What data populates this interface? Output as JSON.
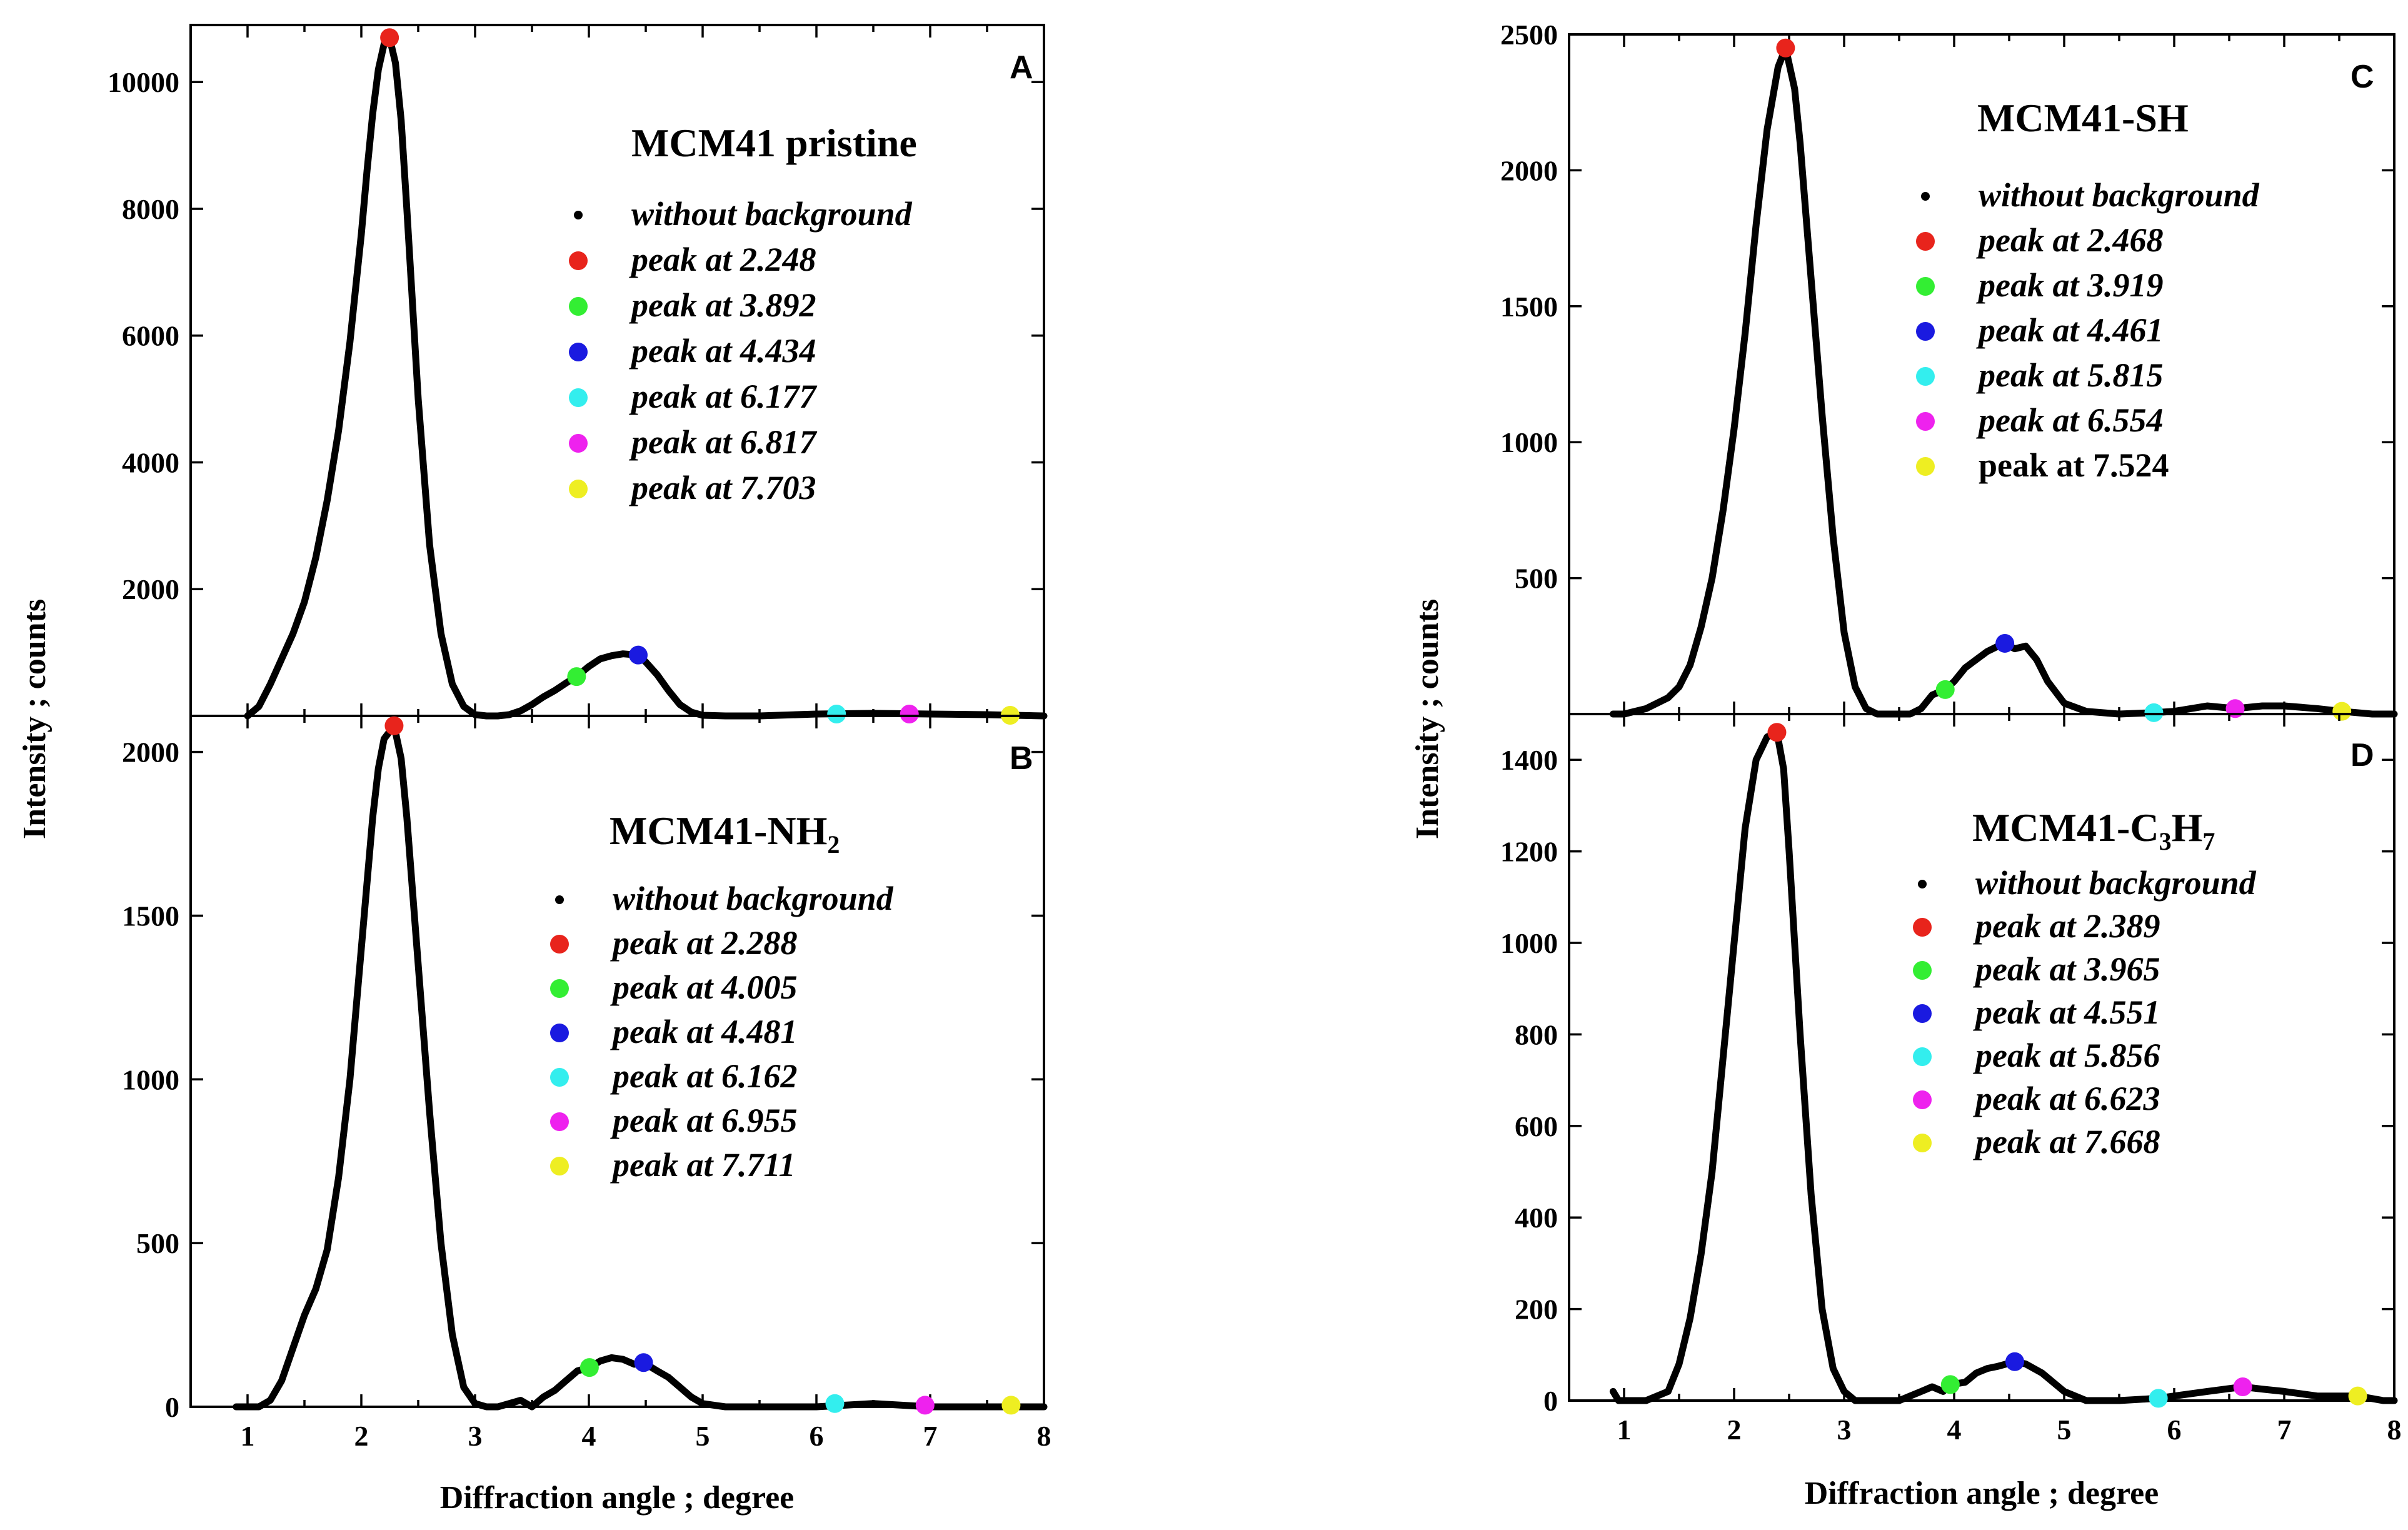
{
  "chart_data": [
    {
      "type": "line",
      "panel_letter": "A",
      "title": "MCM41 pristine",
      "title_subscript": "",
      "xlabel": "Diffraction angle ; degree",
      "ylabel": "Intensity ; counts",
      "xlim": [
        0.5,
        8
      ],
      "ylim": [
        0,
        10900
      ],
      "xticks": [
        1,
        2,
        3,
        4,
        5,
        6,
        7,
        8
      ],
      "xtick_labels": [
        "1",
        "2",
        "3",
        "4",
        "5",
        "6",
        "7",
        "8"
      ],
      "yticks": [
        2000,
        4000,
        6000,
        8000,
        10000
      ],
      "ytick_labels": [
        "2000",
        "4000",
        "6000",
        "8000",
        "10000"
      ],
      "curve": {
        "x": [
          1.0,
          1.1,
          1.2,
          1.3,
          1.4,
          1.5,
          1.6,
          1.7,
          1.8,
          1.9,
          2.0,
          2.05,
          2.1,
          2.15,
          2.2,
          2.248,
          2.3,
          2.35,
          2.4,
          2.45,
          2.5,
          2.6,
          2.7,
          2.8,
          2.9,
          3.0,
          3.1,
          3.2,
          3.3,
          3.4,
          3.5,
          3.6,
          3.7,
          3.8,
          3.892,
          4.0,
          4.1,
          4.2,
          4.3,
          4.434,
          4.5,
          4.6,
          4.7,
          4.8,
          4.9,
          5.0,
          5.2,
          5.5,
          6.0,
          6.5,
          7.0,
          7.5,
          8.0
        ],
        "y": [
          0,
          150,
          500,
          900,
          1300,
          1800,
          2500,
          3400,
          4500,
          5900,
          7600,
          8600,
          9500,
          10200,
          10600,
          10700,
          10300,
          9400,
          8000,
          6500,
          5000,
          2700,
          1300,
          500,
          150,
          20,
          0,
          0,
          20,
          80,
          180,
          300,
          400,
          520,
          620,
          780,
          900,
          950,
          980,
          960,
          850,
          650,
          400,
          180,
          60,
          10,
          0,
          0,
          30,
          40,
          30,
          20,
          0
        ]
      },
      "peaks": [
        {
          "label": "peak at 2.248",
          "x": 2.248,
          "y": 10700,
          "color": "#e8241c"
        },
        {
          "label": "peak at 3.892",
          "x": 3.892,
          "y": 620,
          "color": "#33ee33"
        },
        {
          "label": "peak at 4.434",
          "x": 4.434,
          "y": 960,
          "color": "#1a1ae0"
        },
        {
          "label": "peak at 6.177",
          "x": 6.177,
          "y": 30,
          "color": "#33eeee"
        },
        {
          "label": "peak at 6.817",
          "x": 6.817,
          "y": 30,
          "color": "#ee22ee"
        },
        {
          "label": "peak at 7.703",
          "x": 7.703,
          "y": 10,
          "color": "#eeee22"
        }
      ],
      "legend_background": "without background"
    },
    {
      "type": "line",
      "panel_letter": "B",
      "title": "MCM41-NH",
      "title_subscript": "2",
      "xlabel": "Diffraction angle ; degree",
      "ylabel": "Intensity ; counts",
      "xlim": [
        0.5,
        8
      ],
      "ylim": [
        0,
        2110
      ],
      "xticks": [
        1,
        2,
        3,
        4,
        5,
        6,
        7,
        8
      ],
      "xtick_labels": [
        "1",
        "2",
        "3",
        "4",
        "5",
        "6",
        "7",
        "8"
      ],
      "yticks": [
        0,
        500,
        1000,
        1500,
        2000
      ],
      "ytick_labels": [
        "0",
        "500",
        "1000",
        "1500",
        "2000"
      ],
      "curve": {
        "x": [
          0.9,
          1.0,
          1.1,
          1.2,
          1.3,
          1.4,
          1.5,
          1.6,
          1.7,
          1.8,
          1.9,
          2.0,
          2.1,
          2.15,
          2.2,
          2.288,
          2.35,
          2.4,
          2.5,
          2.6,
          2.7,
          2.8,
          2.9,
          3.0,
          3.1,
          3.2,
          3.3,
          3.4,
          3.5,
          3.6,
          3.7,
          3.8,
          3.9,
          4.005,
          4.1,
          4.2,
          4.3,
          4.4,
          4.481,
          4.6,
          4.7,
          4.8,
          4.9,
          5.0,
          5.2,
          5.5,
          6.0,
          6.5,
          7.0,
          7.5,
          8.0
        ],
        "y": [
          0,
          0,
          0,
          20,
          80,
          180,
          280,
          360,
          480,
          700,
          1000,
          1400,
          1800,
          1950,
          2040,
          2080,
          1980,
          1800,
          1350,
          900,
          500,
          220,
          60,
          10,
          0,
          0,
          10,
          20,
          0,
          30,
          50,
          80,
          110,
          120,
          140,
          150,
          145,
          130,
          135,
          110,
          90,
          60,
          30,
          10,
          0,
          0,
          0,
          10,
          0,
          0,
          0
        ]
      },
      "peaks": [
        {
          "label": "peak at 2.288",
          "x": 2.288,
          "y": 2080,
          "color": "#e8241c"
        },
        {
          "label": "peak at 4.005",
          "x": 4.005,
          "y": 120,
          "color": "#33ee33"
        },
        {
          "label": "peak at 4.481",
          "x": 4.481,
          "y": 135,
          "color": "#1a1ae0"
        },
        {
          "label": "peak at 6.162",
          "x": 6.162,
          "y": 10,
          "color": "#33eeee"
        },
        {
          "label": "peak at 6.955",
          "x": 6.955,
          "y": 5,
          "color": "#ee22ee"
        },
        {
          "label": "peak at 7.711",
          "x": 7.711,
          "y": 5,
          "color": "#eeee22"
        }
      ],
      "legend_background": "without background"
    },
    {
      "type": "line",
      "panel_letter": "C",
      "title": "MCM41-SH",
      "title_subscript": "",
      "xlabel": "Diffraction angle ; degree",
      "ylabel": "Intensity ; counts",
      "xlim": [
        0.5,
        8
      ],
      "ylim": [
        0,
        2500
      ],
      "xticks": [
        1,
        2,
        3,
        4,
        5,
        6,
        7,
        8
      ],
      "xtick_labels": [
        "1",
        "2",
        "3",
        "4",
        "5",
        "6",
        "7",
        "8"
      ],
      "yticks": [
        500,
        1000,
        1500,
        2000,
        2500
      ],
      "ytick_labels": [
        "500",
        "1000",
        "1500",
        "2000",
        "2500"
      ],
      "curve": {
        "x": [
          0.9,
          1.0,
          1.2,
          1.4,
          1.5,
          1.6,
          1.7,
          1.8,
          1.9,
          2.0,
          2.1,
          2.2,
          2.3,
          2.4,
          2.468,
          2.55,
          2.6,
          2.7,
          2.8,
          2.9,
          3.0,
          3.1,
          3.2,
          3.3,
          3.4,
          3.5,
          3.6,
          3.7,
          3.8,
          3.919,
          4.0,
          4.1,
          4.2,
          4.3,
          4.4,
          4.461,
          4.55,
          4.65,
          4.75,
          4.85,
          5.0,
          5.2,
          5.5,
          5.815,
          6.0,
          6.3,
          6.554,
          6.8,
          7.0,
          7.3,
          7.524,
          7.8,
          8.0
        ],
        "y": [
          0,
          0,
          20,
          60,
          100,
          180,
          320,
          500,
          750,
          1050,
          1400,
          1800,
          2150,
          2380,
          2450,
          2300,
          2100,
          1600,
          1100,
          650,
          300,
          100,
          20,
          0,
          0,
          0,
          0,
          20,
          70,
          90,
          120,
          170,
          200,
          230,
          250,
          260,
          240,
          250,
          200,
          120,
          40,
          10,
          0,
          5,
          10,
          30,
          20,
          30,
          30,
          20,
          10,
          0,
          0
        ]
      },
      "peaks": [
        {
          "label": "peak at 2.468",
          "x": 2.468,
          "y": 2450,
          "color": "#e8241c"
        },
        {
          "label": "peak at 3.919",
          "x": 3.919,
          "y": 90,
          "color": "#33ee33"
        },
        {
          "label": "peak at 4.461",
          "x": 4.461,
          "y": 260,
          "color": "#1a1ae0"
        },
        {
          "label": "peak at 5.815",
          "x": 5.815,
          "y": 5,
          "color": "#33eeee"
        },
        {
          "label": "peak at 6.554",
          "x": 6.554,
          "y": 20,
          "color": "#ee22ee"
        },
        {
          "label": "peak at 7.524",
          "x": 7.524,
          "y": 10,
          "color": "#eeee22"
        }
      ],
      "legend_background": "without background"
    },
    {
      "type": "line",
      "panel_letter": "D",
      "title": "MCM41-C",
      "title_subscript": "3",
      "title_suffix": "H",
      "title_subscript2": "7",
      "xlabel": "Diffraction angle ; degree",
      "ylabel": "Intensity ; counts",
      "xlim": [
        0.5,
        8
      ],
      "ylim": [
        0,
        1500
      ],
      "xticks": [
        1,
        2,
        3,
        4,
        5,
        6,
        7,
        8
      ],
      "xtick_labels": [
        "1",
        "2",
        "3",
        "4",
        "5",
        "6",
        "7",
        "8"
      ],
      "yticks": [
        0,
        200,
        400,
        600,
        800,
        1000,
        1200,
        1400
      ],
      "ytick_labels": [
        "0",
        "200",
        "400",
        "600",
        "800",
        "1000",
        "1200",
        "1400"
      ],
      "curve": {
        "x": [
          0.9,
          0.95,
          1.0,
          1.2,
          1.4,
          1.5,
          1.6,
          1.7,
          1.8,
          1.9,
          2.0,
          2.1,
          2.2,
          2.3,
          2.389,
          2.45,
          2.5,
          2.6,
          2.7,
          2.8,
          2.9,
          3.0,
          3.1,
          3.2,
          3.3,
          3.5,
          3.7,
          3.8,
          3.9,
          3.965,
          4.1,
          4.2,
          4.3,
          4.4,
          4.551,
          4.65,
          4.8,
          5.0,
          5.2,
          5.5,
          5.856,
          6.0,
          6.3,
          6.623,
          6.8,
          7.0,
          7.3,
          7.668,
          7.9,
          8.0
        ],
        "y": [
          20,
          0,
          0,
          0,
          20,
          80,
          180,
          320,
          500,
          750,
          1000,
          1250,
          1400,
          1450,
          1460,
          1380,
          1200,
          800,
          450,
          200,
          70,
          20,
          0,
          0,
          0,
          0,
          20,
          30,
          20,
          35,
          40,
          60,
          70,
          75,
          85,
          80,
          60,
          20,
          0,
          0,
          5,
          10,
          20,
          30,
          25,
          20,
          10,
          10,
          0,
          0
        ]
      },
      "peaks": [
        {
          "label": "peak at 2.389",
          "x": 2.389,
          "y": 1460,
          "color": "#e8241c"
        },
        {
          "label": "peak at 3.965",
          "x": 3.965,
          "y": 35,
          "color": "#33ee33"
        },
        {
          "label": "peak at 4.551",
          "x": 4.551,
          "y": 85,
          "color": "#1a1ae0"
        },
        {
          "label": "peak at 5.856",
          "x": 5.856,
          "y": 5,
          "color": "#33eeee"
        },
        {
          "label": "peak at 6.623",
          "x": 6.623,
          "y": 30,
          "color": "#ee22ee"
        },
        {
          "label": "peak at 7.668",
          "x": 7.668,
          "y": 10,
          "color": "#eeee22"
        }
      ],
      "legend_background": "without background"
    }
  ],
  "upright_legend_labels": [
    "peak at 7.524"
  ]
}
